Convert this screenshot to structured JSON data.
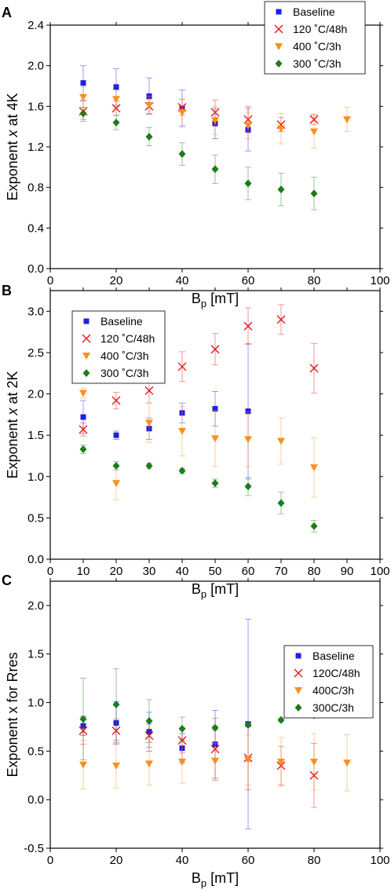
{
  "chart_data": [
    {
      "type": "scatter",
      "panel_label": "A",
      "xlabel_main": "B",
      "xlabel_sub": "p",
      "xlabel_unit": "[mT]",
      "ylabel_pre": "Exponent ",
      "ylabel_var": "x",
      "ylabel_post": " at 4K",
      "xlim": [
        0,
        100
      ],
      "ylim": [
        0,
        2.4
      ],
      "xticks": [
        0,
        20,
        40,
        60,
        80,
        100
      ],
      "yticks": [
        0.0,
        0.4,
        0.8,
        1.2,
        1.6,
        2.0,
        2.4
      ],
      "xtick_labels": [
        "0",
        "20",
        "40",
        "60",
        "80",
        "100"
      ],
      "ytick_labels": [
        "0.0",
        "0.4",
        "0.8",
        "1.2",
        "1.6",
        "2.0",
        "2.4"
      ],
      "legend_position": "top-right",
      "series": [
        {
          "name": "Baseline",
          "color": "#1f1fe6",
          "marker": "square",
          "x": [
            10,
            20,
            30,
            40,
            50,
            60
          ],
          "y": [
            1.83,
            1.79,
            1.7,
            1.58,
            1.43,
            1.37
          ],
          "err": [
            0.17,
            0.18,
            0.18,
            0.18,
            0.15,
            0.21
          ]
        },
        {
          "name": "120 ˚C/48h",
          "color": "#e41a1c",
          "marker": "x",
          "x": [
            10,
            20,
            30,
            40,
            50,
            60,
            70,
            80
          ],
          "y": [
            1.55,
            1.58,
            1.6,
            1.59,
            1.54,
            1.47,
            1.42,
            1.47
          ],
          "err": [
            0.1,
            0.07,
            0.07,
            0.08,
            0.12,
            0.13,
            0.07,
            0.05
          ]
        },
        {
          "name": "400 ˚C/3h",
          "color": "#f7911e",
          "marker": "triangle-down",
          "x": [
            10,
            20,
            30,
            40,
            50,
            60,
            70,
            80,
            90
          ],
          "y": [
            1.69,
            1.67,
            1.61,
            1.54,
            1.46,
            1.41,
            1.38,
            1.35,
            1.47
          ],
          "err": [
            0.1,
            0.09,
            0.09,
            0.13,
            0.14,
            0.13,
            0.15,
            0.16,
            0.12
          ]
        },
        {
          "name": "300 ˚C/3h",
          "color": "#1b7d1b",
          "marker": "diamond",
          "x": [
            10,
            20,
            30,
            40,
            50,
            60,
            70,
            80
          ],
          "y": [
            1.53,
            1.44,
            1.3,
            1.13,
            0.98,
            0.84,
            0.78,
            0.74
          ],
          "err": [
            0.06,
            0.07,
            0.09,
            0.11,
            0.14,
            0.16,
            0.16,
            0.16
          ]
        }
      ]
    },
    {
      "type": "scatter",
      "panel_label": "B",
      "xlabel_main": "B",
      "xlabel_sub": "p",
      "xlabel_unit": "[mT]",
      "ylabel_pre": "Exponent ",
      "ylabel_var": "x",
      "ylabel_post": " at 2K",
      "xlim": [
        0,
        100
      ],
      "ylim": [
        0,
        3.25
      ],
      "xticks": [
        0,
        10,
        20,
        30,
        40,
        50,
        60,
        70,
        80,
        90,
        100
      ],
      "yticks": [
        0.0,
        0.5,
        1.0,
        1.5,
        2.0,
        2.5,
        3.0
      ],
      "xtick_labels": [
        "0",
        "10",
        "20",
        "30",
        "40",
        "50",
        "60",
        "70",
        "80",
        "90",
        "100"
      ],
      "ytick_labels": [
        "0.0",
        "0.5",
        "1.0",
        "1.5",
        "2.0",
        "2.5",
        "3.0"
      ],
      "legend_position": "top-left",
      "series": [
        {
          "name": "Baseline",
          "color": "#1f1fe6",
          "marker": "square",
          "x": [
            10,
            20,
            30,
            40,
            50,
            60
          ],
          "y": [
            1.72,
            1.5,
            1.58,
            1.77,
            1.82,
            1.79
          ],
          "err": [
            0.2,
            0.05,
            0.13,
            0.12,
            0.21,
            0.82
          ]
        },
        {
          "name": "120 ˚C/48h",
          "color": "#e41a1c",
          "marker": "x",
          "x": [
            10,
            20,
            30,
            40,
            50,
            60,
            70,
            80
          ],
          "y": [
            1.57,
            1.92,
            2.04,
            2.33,
            2.54,
            2.82,
            2.9,
            2.31
          ],
          "err": [
            0.08,
            0.1,
            0.15,
            0.18,
            0.19,
            0.22,
            0.18,
            0.3
          ]
        },
        {
          "name": "400 ˚C/3h",
          "color": "#f7911e",
          "marker": "triangle-down",
          "x": [
            10,
            20,
            30,
            40,
            50,
            60,
            70,
            80
          ],
          "y": [
            2.01,
            0.92,
            1.65,
            1.55,
            1.46,
            1.45,
            1.43,
            1.11
          ],
          "err": [
            0.06,
            0.2,
            0.24,
            0.3,
            0.34,
            0.33,
            0.28,
            0.36
          ]
        },
        {
          "name": "300 ˚C/3h",
          "color": "#1b7d1b",
          "marker": "diamond",
          "x": [
            10,
            20,
            30,
            40,
            50,
            60,
            70,
            80
          ],
          "y": [
            1.33,
            1.13,
            1.13,
            1.07,
            0.92,
            0.88,
            0.68,
            0.4
          ],
          "err": [
            0.05,
            0.05,
            0.03,
            0.03,
            0.05,
            0.11,
            0.13,
            0.07
          ]
        }
      ]
    },
    {
      "type": "scatter",
      "panel_label": "C",
      "xlabel_main": "B",
      "xlabel_sub": "p",
      "xlabel_unit": "[mT]",
      "ylabel_pre": "Exponent x for Rres",
      "ylabel_var": "",
      "ylabel_post": "",
      "xlim": [
        0,
        100
      ],
      "ylim": [
        -0.5,
        2.25
      ],
      "xticks": [
        0,
        20,
        40,
        60,
        80,
        100
      ],
      "yticks": [
        -0.5,
        0.0,
        0.5,
        1.0,
        1.5,
        2.0
      ],
      "xtick_labels": [
        "0",
        "20",
        "40",
        "60",
        "80",
        "100"
      ],
      "ytick_labels": [
        "-0.5",
        "0.0",
        "0.5",
        "1.0",
        "1.5",
        "2.0"
      ],
      "legend_position": "right",
      "series": [
        {
          "name": "Baseline",
          "color": "#1f1fe6",
          "marker": "square",
          "x": [
            10,
            20,
            30,
            40,
            50,
            60
          ],
          "y": [
            0.76,
            0.79,
            0.7,
            0.53,
            0.57,
            0.78
          ],
          "err": [
            0.1,
            0.22,
            0.2,
            0.15,
            0.35,
            1.08
          ]
        },
        {
          "name": "120C/48h",
          "color": "#e41a1c",
          "marker": "x",
          "x": [
            10,
            20,
            30,
            40,
            50,
            60,
            70,
            80
          ],
          "y": [
            0.71,
            0.71,
            0.66,
            0.61,
            0.52,
            0.43,
            0.35,
            0.25
          ],
          "err": [
            0.14,
            0.12,
            0.12,
            0.13,
            0.32,
            0.33,
            0.2,
            0.33
          ]
        },
        {
          "name": "400C/3h",
          "color": "#f7911e",
          "marker": "triangle-down",
          "x": [
            10,
            20,
            30,
            40,
            50,
            60,
            70,
            80,
            90
          ],
          "y": [
            0.36,
            0.35,
            0.37,
            0.39,
            0.4,
            0.41,
            0.39,
            0.39,
            0.38
          ],
          "err": [
            0.25,
            0.23,
            0.22,
            0.22,
            0.18,
            0.26,
            0.25,
            0.29,
            0.29
          ]
        },
        {
          "name": "300C/3h",
          "color": "#1b7d1b",
          "marker": "diamond",
          "x": [
            10,
            20,
            30,
            40,
            50,
            60,
            70,
            80
          ],
          "y": [
            0.83,
            0.98,
            0.81,
            0.73,
            0.74,
            0.77,
            0.82,
            0.87
          ],
          "err": [
            0.42,
            0.37,
            0.22,
            0.12,
            0.02,
            0.02,
            0.02,
            0.02
          ]
        }
      ]
    }
  ]
}
